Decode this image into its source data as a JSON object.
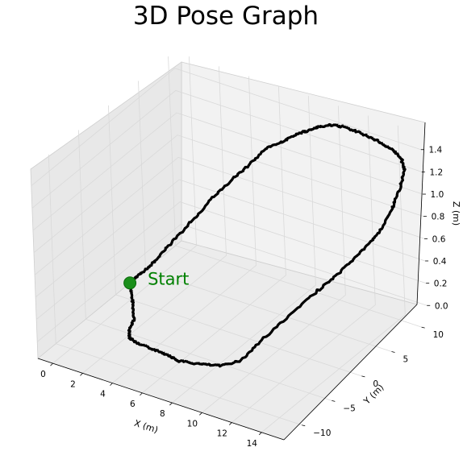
{
  "chart_data": {
    "type": "line",
    "title": "3D Pose Graph",
    "xlabel": "X (m)",
    "ylabel": "Y (m)",
    "zlabel": "Z (m)",
    "xlim": [
      -1,
      15.5
    ],
    "ylim": [
      -13,
      11
    ],
    "zlim": [
      -0.15,
      1.55
    ],
    "x_ticks": [
      "0",
      "2",
      "4",
      "6",
      "8",
      "10",
      "12",
      "14"
    ],
    "y_ticks": [
      "−10",
      "−5",
      "0",
      "5",
      "10"
    ],
    "z_ticks": [
      "0.0",
      "0.2",
      "0.4",
      "0.6",
      "0.8",
      "1.0",
      "1.2",
      "1.4"
    ],
    "grid": true,
    "line_color": "#000000",
    "pane_color": "#f2f2f2",
    "grid_color": "#d9d9d9",
    "start_marker": {
      "label": "Start",
      "color": "#008000",
      "x": 0,
      "y": 0,
      "z": 0
    },
    "trajectory": {
      "x": [
        0,
        1.0,
        2.0,
        2.5,
        3.2,
        4.1,
        5.0,
        6.0,
        7.0,
        8.3,
        9.5,
        10.5,
        11.3,
        12.2,
        13.1,
        13.8,
        14.3,
        14.8,
        15.1,
        15.2,
        15.1,
        14.9,
        14.5,
        14.0,
        13.1,
        12.0,
        11.0,
        10.2,
        9.6,
        9.2,
        8.6,
        7.8,
        6.7,
        5.5,
        4.2,
        3.0,
        2.0,
        1.2,
        0.6,
        0.3,
        0.1,
        0
      ],
      "y": [
        0,
        -2.1,
        -4.3,
        -6.4,
        -8.0,
        -8.8,
        -8.5,
        -8.5,
        -9.5,
        -9.3,
        -8.5,
        -7.5,
        -6.0,
        -3.2,
        -0.9,
        0.8,
        2.5,
        4.3,
        5.5,
        6.8,
        8.3,
        9.6,
        10.2,
        10.3,
        10.1,
        9.7,
        9.3,
        8.9,
        8.5,
        8.2,
        7.8,
        7.4,
        7.0,
        6.8,
        7.0,
        6.8,
        6.0,
        5.2,
        4.0,
        2.6,
        1.2,
        0
      ],
      "z": [
        0,
        -0.03,
        -0.05,
        -0.03,
        0,
        0.02,
        0.0,
        -0.01,
        0.03,
        0.05,
        0.05,
        0.1,
        0.25,
        0.4,
        0.55,
        0.65,
        0.75,
        0.85,
        0.95,
        1.05,
        1.15,
        1.25,
        1.3,
        1.35,
        1.4,
        1.45,
        1.48,
        1.48,
        1.45,
        1.42,
        1.38,
        1.3,
        1.2,
        1.0,
        0.8,
        0.6,
        0.4,
        0.25,
        0.12,
        0.05,
        0.02,
        0
      ]
    }
  }
}
